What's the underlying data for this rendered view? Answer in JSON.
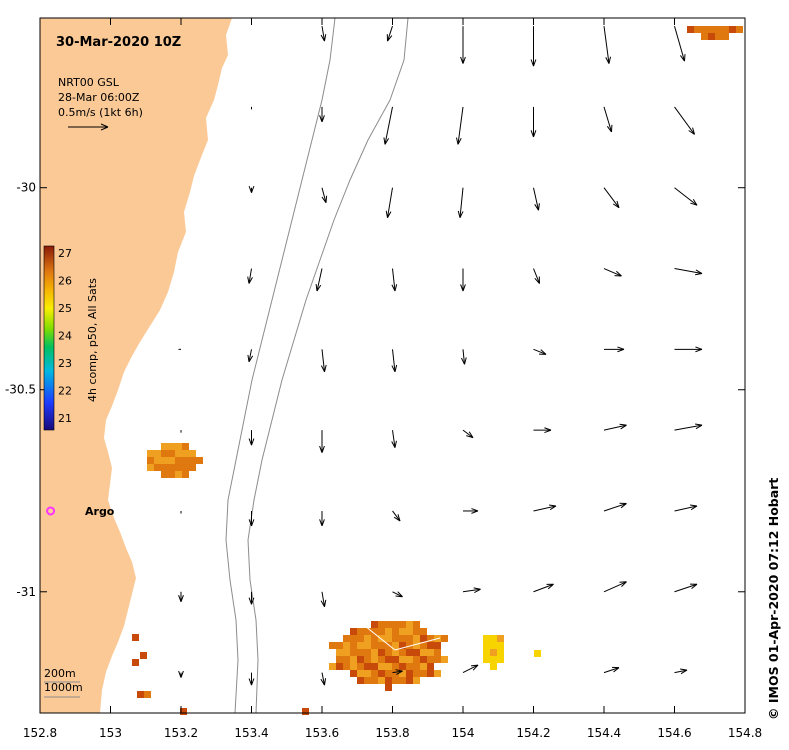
{
  "title": "30-Mar-2020 10Z",
  "legend": {
    "line1": "NRT00 GSL",
    "line2": "28-Mar 06:00Z",
    "line3": "0.5m/s (1kt 6h)"
  },
  "colorbar": {
    "label": "4h comp, p50, All Sats",
    "ticks": [
      "27",
      "26",
      "25",
      "24",
      "23",
      "22",
      "21"
    ]
  },
  "argo_label": "Argo",
  "depth_labels": [
    "200m",
    "1000m"
  ],
  "credit": "© IMOS 01-Apr-2020 07:12 Hobart",
  "colors": {
    "land": "#fbc996",
    "sst_dark": "#c84a0a",
    "sst_mid": "#e07810",
    "sst_light": "#f0a020",
    "sst_yellow": "#f7d400",
    "argo": "#ff33ff",
    "contour": "#888888"
  },
  "chart_data": {
    "type": "map",
    "x_ticks": [
      "152.8",
      "153",
      "153.2",
      "153.4",
      "153.6",
      "153.8",
      "154",
      "154.2",
      "154.4",
      "154.6",
      "154.8"
    ],
    "y_ticks": [
      "-30",
      "-30.5",
      "-31"
    ],
    "xlim": [
      152.8,
      154.8
    ],
    "ylim": [
      -31.3,
      -29.58
    ],
    "argo": {
      "lon": 152.83,
      "lat": -30.8
    },
    "vectors": [
      {
        "lon": 153.6,
        "lat": -29.6,
        "u": 0.05,
        "v": -0.3
      },
      {
        "lon": 153.8,
        "lat": -29.6,
        "u": -0.1,
        "v": -0.3
      },
      {
        "lon": 154.0,
        "lat": -29.6,
        "u": 0.0,
        "v": -0.75
      },
      {
        "lon": 154.2,
        "lat": -29.6,
        "u": 0.0,
        "v": -0.8
      },
      {
        "lon": 154.4,
        "lat": -29.6,
        "u": 0.1,
        "v": -0.75
      },
      {
        "lon": 154.6,
        "lat": -29.6,
        "u": 0.2,
        "v": -0.7
      },
      {
        "lon": 153.6,
        "lat": -29.8,
        "u": 0.0,
        "v": -0.3
      },
      {
        "lon": 153.8,
        "lat": -29.8,
        "u": -0.15,
        "v": -0.75
      },
      {
        "lon": 154.0,
        "lat": -29.8,
        "u": -0.1,
        "v": -0.75
      },
      {
        "lon": 154.2,
        "lat": -29.8,
        "u": 0.0,
        "v": -0.6
      },
      {
        "lon": 154.4,
        "lat": -29.8,
        "u": 0.15,
        "v": -0.5
      },
      {
        "lon": 154.6,
        "lat": -29.8,
        "u": 0.4,
        "v": -0.55
      },
      {
        "lon": 153.6,
        "lat": -30.0,
        "u": 0.08,
        "v": -0.3
      },
      {
        "lon": 153.8,
        "lat": -30.0,
        "u": -0.1,
        "v": -0.6
      },
      {
        "lon": 154.0,
        "lat": -30.0,
        "u": -0.06,
        "v": -0.6
      },
      {
        "lon": 154.2,
        "lat": -30.0,
        "u": 0.1,
        "v": -0.45
      },
      {
        "lon": 154.4,
        "lat": -30.0,
        "u": 0.3,
        "v": -0.4
      },
      {
        "lon": 154.6,
        "lat": -30.0,
        "u": 0.45,
        "v": -0.35
      },
      {
        "lon": 153.6,
        "lat": -30.2,
        "u": -0.1,
        "v": -0.45
      },
      {
        "lon": 153.8,
        "lat": -30.2,
        "u": 0.05,
        "v": -0.45
      },
      {
        "lon": 154.0,
        "lat": -30.2,
        "u": 0.0,
        "v": -0.45
      },
      {
        "lon": 154.2,
        "lat": -30.2,
        "u": 0.12,
        "v": -0.3
      },
      {
        "lon": 154.4,
        "lat": -30.2,
        "u": 0.35,
        "v": -0.15
      },
      {
        "lon": 154.6,
        "lat": -30.2,
        "u": 0.55,
        "v": -0.1
      },
      {
        "lon": 153.6,
        "lat": -30.4,
        "u": 0.05,
        "v": -0.45
      },
      {
        "lon": 153.8,
        "lat": -30.4,
        "u": 0.05,
        "v": -0.45
      },
      {
        "lon": 154.0,
        "lat": -30.4,
        "u": 0.03,
        "v": -0.3
      },
      {
        "lon": 154.2,
        "lat": -30.4,
        "u": 0.25,
        "v": -0.1
      },
      {
        "lon": 154.4,
        "lat": -30.4,
        "u": 0.4,
        "v": 0.0
      },
      {
        "lon": 154.6,
        "lat": -30.4,
        "u": 0.55,
        "v": 0.0
      },
      {
        "lon": 153.6,
        "lat": -30.6,
        "u": 0.0,
        "v": -0.45
      },
      {
        "lon": 153.8,
        "lat": -30.6,
        "u": 0.05,
        "v": -0.35
      },
      {
        "lon": 154.0,
        "lat": -30.6,
        "u": 0.2,
        "v": -0.15
      },
      {
        "lon": 154.2,
        "lat": -30.6,
        "u": 0.35,
        "v": 0.0
      },
      {
        "lon": 154.4,
        "lat": -30.6,
        "u": 0.45,
        "v": 0.1
      },
      {
        "lon": 154.6,
        "lat": -30.6,
        "u": 0.55,
        "v": 0.1
      },
      {
        "lon": 153.6,
        "lat": -30.8,
        "u": 0.0,
        "v": -0.3
      },
      {
        "lon": 153.8,
        "lat": -30.8,
        "u": 0.15,
        "v": -0.2
      },
      {
        "lon": 154.0,
        "lat": -30.8,
        "u": 0.3,
        "v": 0.0
      },
      {
        "lon": 154.2,
        "lat": -30.8,
        "u": 0.45,
        "v": 0.1
      },
      {
        "lon": 154.4,
        "lat": -30.8,
        "u": 0.45,
        "v": 0.15
      },
      {
        "lon": 154.6,
        "lat": -30.8,
        "u": 0.45,
        "v": 0.1
      },
      {
        "lon": 153.6,
        "lat": -31.0,
        "u": 0.05,
        "v": -0.3
      },
      {
        "lon": 153.8,
        "lat": -31.0,
        "u": 0.2,
        "v": -0.1
      },
      {
        "lon": 154.0,
        "lat": -31.0,
        "u": 0.35,
        "v": 0.05
      },
      {
        "lon": 154.2,
        "lat": -31.0,
        "u": 0.4,
        "v": 0.15
      },
      {
        "lon": 154.4,
        "lat": -31.0,
        "u": 0.45,
        "v": 0.2
      },
      {
        "lon": 154.6,
        "lat": -31.0,
        "u": 0.45,
        "v": 0.15
      },
      {
        "lon": 153.6,
        "lat": -31.2,
        "u": 0.05,
        "v": -0.25
      },
      {
        "lon": 153.8,
        "lat": -31.2,
        "u": 0.2,
        "v": 0.03
      },
      {
        "lon": 154.0,
        "lat": -31.2,
        "u": 0.3,
        "v": 0.15
      },
      {
        "lon": 154.4,
        "lat": -31.2,
        "u": 0.3,
        "v": 0.1
      },
      {
        "lon": 154.6,
        "lat": -31.2,
        "u": 0.25,
        "v": 0.05
      },
      {
        "lon": 153.4,
        "lat": -29.8,
        "u": 0.0,
        "v": -0.05
      },
      {
        "lon": 153.4,
        "lat": -30.0,
        "u": 0.0,
        "v": -0.1
      },
      {
        "lon": 153.4,
        "lat": -30.2,
        "u": -0.05,
        "v": -0.3
      },
      {
        "lon": 153.4,
        "lat": -30.4,
        "u": -0.05,
        "v": -0.25
      },
      {
        "lon": 153.4,
        "lat": -30.6,
        "u": 0.0,
        "v": -0.3
      },
      {
        "lon": 153.4,
        "lat": -30.8,
        "u": 0.0,
        "v": -0.3
      },
      {
        "lon": 153.4,
        "lat": -31.0,
        "u": 0.0,
        "v": -0.25
      },
      {
        "lon": 153.4,
        "lat": -31.2,
        "u": 0.0,
        "v": -0.25
      },
      {
        "lon": 153.2,
        "lat": -30.4,
        "u": -0.05,
        "v": 0.0
      },
      {
        "lon": 153.2,
        "lat": -30.6,
        "u": 0.0,
        "v": -0.05
      },
      {
        "lon": 153.2,
        "lat": -30.8,
        "u": 0.0,
        "v": -0.05
      },
      {
        "lon": 153.2,
        "lat": -31.0,
        "u": 0.0,
        "v": -0.2
      },
      {
        "lon": 153.2,
        "lat": -31.2,
        "u": 0.0,
        "v": -0.1
      }
    ]
  }
}
